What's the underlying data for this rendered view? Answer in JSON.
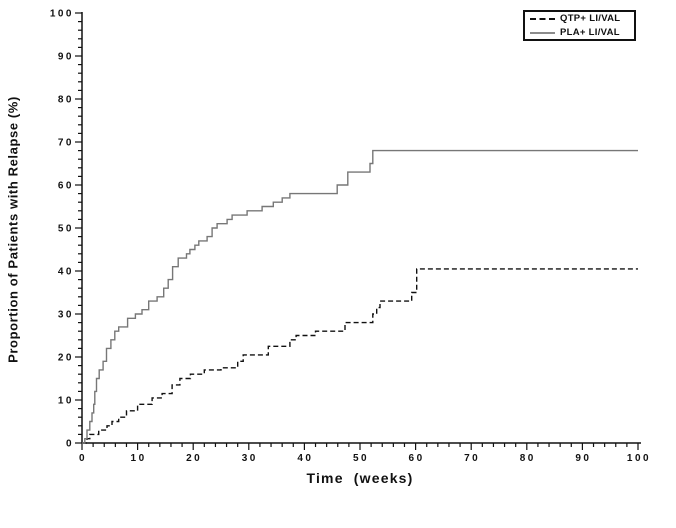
{
  "chart_data": {
    "type": "line",
    "subtype": "step",
    "title": "",
    "xlabel": "Time (weeks)",
    "ylabel": "Proportion of Patients with Relapse (%)",
    "xlim": [
      0,
      100
    ],
    "ylim": [
      0,
      100
    ],
    "x_major_ticks": [
      0,
      10,
      20,
      30,
      40,
      50,
      60,
      70,
      80,
      90,
      100
    ],
    "x_minor_step": 2,
    "y_major_ticks": [
      0,
      10,
      20,
      30,
      40,
      50,
      60,
      70,
      80,
      90,
      100
    ],
    "y_minor_step": 2,
    "grid": "off",
    "legend_position": "top-right",
    "axis_color": "#111111",
    "background_color": "#ffffff",
    "series": [
      {
        "id": "qtp",
        "name": "QTP+ LI/VAL",
        "line_style": "dashed",
        "color": "#111111",
        "points": [
          [
            0,
            0
          ],
          [
            0.9,
            1
          ],
          [
            1.4,
            2
          ],
          [
            3,
            3
          ],
          [
            4.5,
            4
          ],
          [
            5.4,
            5
          ],
          [
            6.6,
            6
          ],
          [
            8,
            7.5
          ],
          [
            10,
            9
          ],
          [
            12.6,
            10.5
          ],
          [
            14.4,
            11.5
          ],
          [
            16.2,
            13.5
          ],
          [
            17.6,
            15
          ],
          [
            19.5,
            16
          ],
          [
            22,
            17
          ],
          [
            25,
            17.5
          ],
          [
            28,
            19
          ],
          [
            29,
            20.5
          ],
          [
            33.5,
            22.5
          ],
          [
            37.4,
            24
          ],
          [
            38.5,
            25
          ],
          [
            42,
            26
          ],
          [
            47.3,
            28
          ],
          [
            52.3,
            30
          ],
          [
            53,
            31.5
          ],
          [
            53.6,
            33
          ],
          [
            59.3,
            35
          ],
          [
            60.2,
            40.5
          ],
          [
            100,
            40.5
          ]
        ]
      },
      {
        "id": "pla",
        "name": "PLA+ LI/VAL",
        "line_style": "solid",
        "color": "#777777",
        "points": [
          [
            0,
            0
          ],
          [
            0.5,
            1
          ],
          [
            0.9,
            3
          ],
          [
            1.4,
            5
          ],
          [
            1.8,
            7
          ],
          [
            2.1,
            9
          ],
          [
            2.3,
            12
          ],
          [
            2.6,
            15
          ],
          [
            3.1,
            17
          ],
          [
            3.8,
            19
          ],
          [
            4.4,
            22
          ],
          [
            5.2,
            24
          ],
          [
            5.9,
            26
          ],
          [
            6.6,
            27
          ],
          [
            8.2,
            29
          ],
          [
            9.6,
            30
          ],
          [
            10.8,
            31
          ],
          [
            12,
            33
          ],
          [
            13.5,
            34
          ],
          [
            14.7,
            36
          ],
          [
            15.5,
            38
          ],
          [
            16.3,
            41
          ],
          [
            17.3,
            43
          ],
          [
            18.8,
            44
          ],
          [
            19.4,
            45
          ],
          [
            20.3,
            46
          ],
          [
            21,
            47
          ],
          [
            22.5,
            48
          ],
          [
            23.4,
            50
          ],
          [
            24.3,
            51
          ],
          [
            26.1,
            52
          ],
          [
            27,
            53
          ],
          [
            29.7,
            54
          ],
          [
            32.4,
            55
          ],
          [
            34.4,
            56
          ],
          [
            36,
            57
          ],
          [
            37.4,
            58
          ],
          [
            45.9,
            60
          ],
          [
            47.8,
            63
          ],
          [
            51.8,
            65
          ],
          [
            52.3,
            68
          ],
          [
            100,
            68
          ]
        ]
      }
    ]
  }
}
